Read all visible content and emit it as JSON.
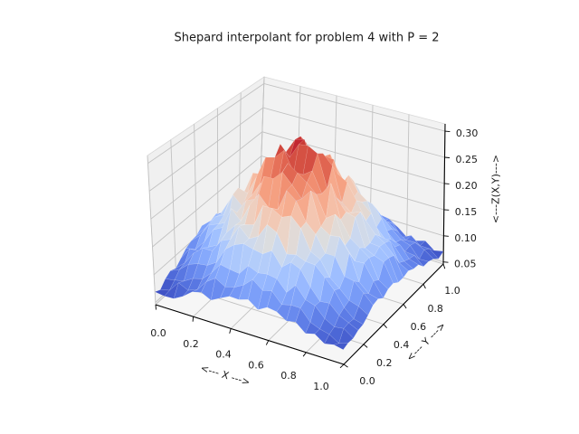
{
  "figure": {
    "background": "#ffffff"
  },
  "chart_data": {
    "type": "surface3d",
    "title": "Shepard interpolant for problem 4 with P = 2",
    "xlabel": "<--- X --->",
    "ylabel": "<--- Y --->",
    "zlabel": "<---Z(X,Y)--->",
    "xlim": [
      0.0,
      1.0
    ],
    "ylim": [
      0.0,
      1.0
    ],
    "zlim": [
      0.046,
      0.314
    ],
    "x_ticks": [
      0.0,
      0.2,
      0.4,
      0.6,
      0.8,
      1.0
    ],
    "y_ticks": [
      0.0,
      0.2,
      0.4,
      0.6,
      0.8,
      1.0
    ],
    "z_ticks": [
      0.05,
      0.1,
      0.15,
      0.2,
      0.25,
      0.3
    ],
    "x_tick_labels": [
      "0.0",
      "0.2",
      "0.4",
      "0.6",
      "0.8",
      "1.0"
    ],
    "y_tick_labels": [
      "0.0",
      "0.2",
      "0.4",
      "0.6",
      "0.8",
      "1.0"
    ],
    "z_tick_labels": [
      "0.05",
      "0.10",
      "0.15",
      "0.20",
      "0.25",
      "0.30"
    ],
    "grid": true,
    "legend": false,
    "view": {
      "elev": 30,
      "azim": -60,
      "projection": "perspective"
    },
    "colormap": "coolwarm",
    "colormap_stops": [
      [
        0.0,
        "#3b4cc0"
      ],
      [
        0.0625,
        "#4d68d7"
      ],
      [
        0.125,
        "#6282ea"
      ],
      [
        0.1875,
        "#779af7"
      ],
      [
        0.25,
        "#8db0fe"
      ],
      [
        0.3125,
        "#a3c2ff"
      ],
      [
        0.375,
        "#b8d0f9"
      ],
      [
        0.4375,
        "#ccd9ee"
      ],
      [
        0.5,
        "#dddddd"
      ],
      [
        0.5625,
        "#ecd3c5"
      ],
      [
        0.625,
        "#f5c4ad"
      ],
      [
        0.6875,
        "#f7b194"
      ],
      [
        0.75,
        "#f49a7b"
      ],
      [
        0.8125,
        "#ec7f63"
      ],
      [
        0.875,
        "#de604d"
      ],
      [
        0.9375,
        "#cb3e38"
      ],
      [
        1.0,
        "#b40426"
      ]
    ],
    "surface": {
      "grid_n": 21,
      "peak": {
        "x": 0.5,
        "y": 0.5,
        "z": 0.31
      },
      "base_z": 0.055,
      "amplitude": 0.235,
      "falloff": 6.2,
      "noise_base": 0.0045,
      "noise_scale": 0.028,
      "noise_seed": 4.7,
      "z_clamp": [
        0.049,
        0.308
      ],
      "z_data_range": [
        0.05,
        0.31
      ]
    }
  },
  "styles": {
    "pane_left": "#f0f0f0",
    "pane_right": "#f2f2f2",
    "pane_floor": "#f6f6f6",
    "pane_edge": "#d9d9d9",
    "grid_color": "#c2c2c2",
    "axis_color": "#000000",
    "text_color": "#1a1a1a",
    "facet_seam": "rgba(255,255,255,0.22)"
  }
}
